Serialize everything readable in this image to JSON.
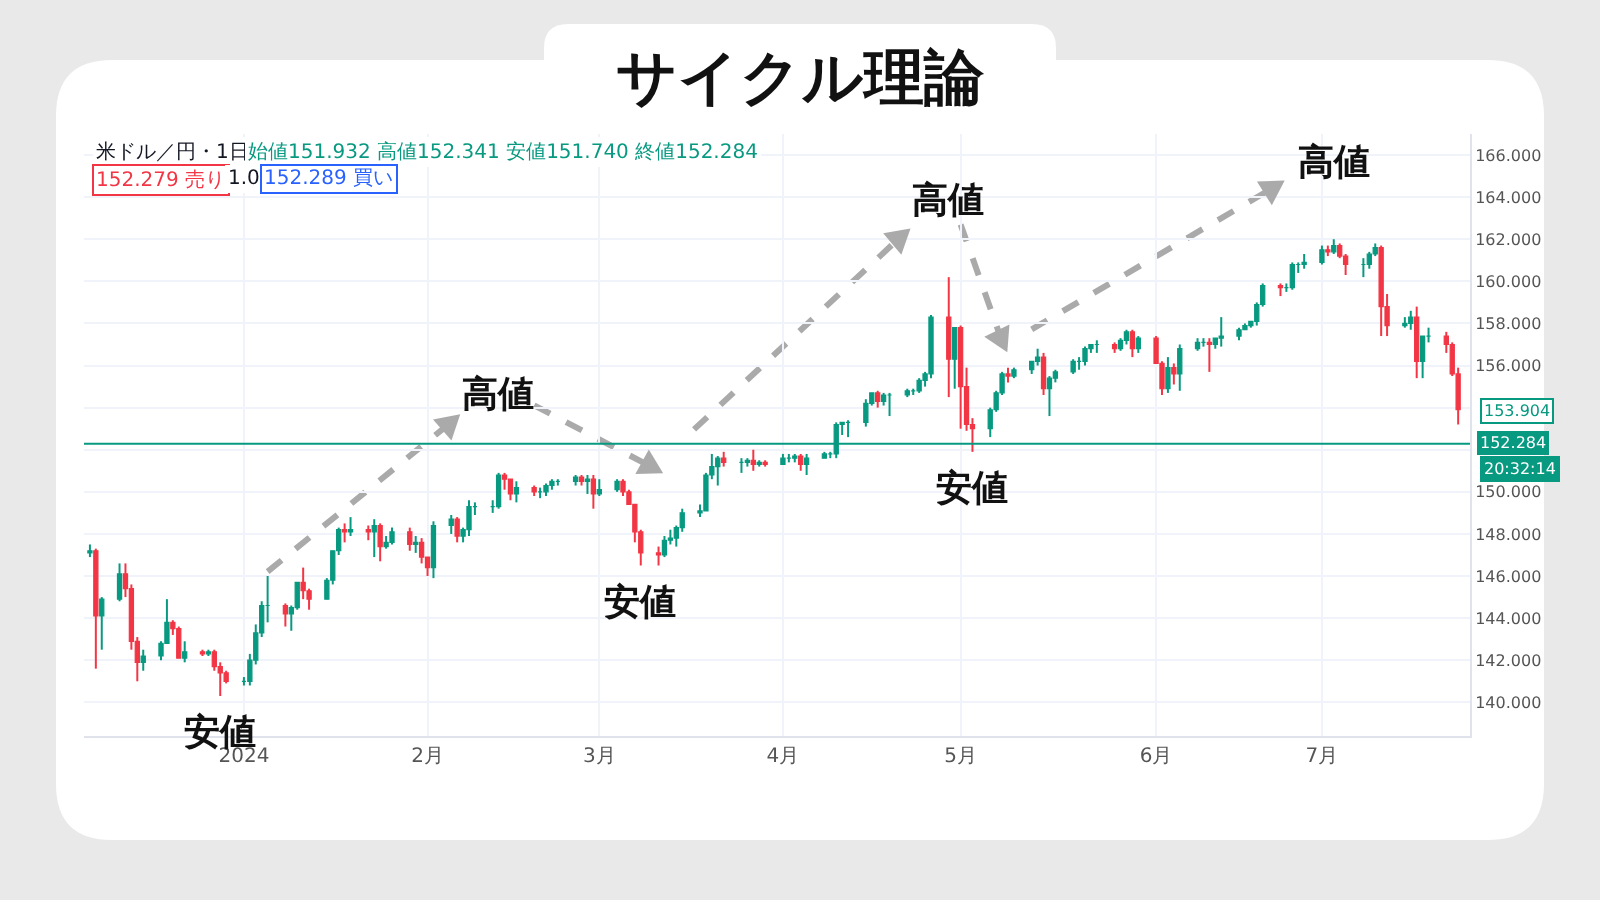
{
  "chart_data": {
    "type": "candlestick",
    "title": "サイクル理論",
    "x": [
      "2023-12-06",
      "2023-12-07",
      "2023-12-08",
      "2023-12-11",
      "2023-12-12",
      "2023-12-13",
      "2023-12-14",
      "2023-12-15",
      "2023-12-18",
      "2023-12-19",
      "2023-12-20",
      "2023-12-21",
      "2023-12-22",
      "2023-12-25",
      "2023-12-26",
      "2023-12-27",
      "2023-12-28",
      "2023-12-29",
      "2024-01-01",
      "2024-01-02",
      "2024-01-03",
      "2024-01-04",
      "2024-01-05",
      "2024-01-08",
      "2024-01-09",
      "2024-01-10",
      "2024-01-11",
      "2024-01-12",
      "2024-01-15",
      "2024-01-16",
      "2024-01-17",
      "2024-01-18",
      "2024-01-19",
      "2024-01-22",
      "2024-01-23",
      "2024-01-24",
      "2024-01-25",
      "2024-01-26",
      "2024-01-29",
      "2024-01-30",
      "2024-01-31",
      "2024-02-01",
      "2024-02-02",
      "2024-02-05",
      "2024-02-06",
      "2024-02-07",
      "2024-02-08",
      "2024-02-09",
      "2024-02-12",
      "2024-02-13",
      "2024-02-14",
      "2024-02-15",
      "2024-02-16",
      "2024-02-19",
      "2024-02-20",
      "2024-02-21",
      "2024-02-22",
      "2024-02-23",
      "2024-02-26",
      "2024-02-27",
      "2024-02-28",
      "2024-02-29",
      "2024-03-01",
      "2024-03-04",
      "2024-03-05",
      "2024-03-06",
      "2024-03-07",
      "2024-03-08",
      "2024-03-11",
      "2024-03-12",
      "2024-03-13",
      "2024-03-14",
      "2024-03-15",
      "2024-03-18",
      "2024-03-19",
      "2024-03-20",
      "2024-03-21",
      "2024-03-22",
      "2024-03-25",
      "2024-03-26",
      "2024-03-27",
      "2024-03-28",
      "2024-03-29",
      "2024-04-01",
      "2024-04-02",
      "2024-04-03",
      "2024-04-04",
      "2024-04-05",
      "2024-04-08",
      "2024-04-09",
      "2024-04-10",
      "2024-04-11",
      "2024-04-12",
      "2024-04-15",
      "2024-04-16",
      "2024-04-17",
      "2024-04-18",
      "2024-04-19",
      "2024-04-22",
      "2024-04-23",
      "2024-04-24",
      "2024-04-25",
      "2024-04-26",
      "2024-04-29",
      "2024-04-30",
      "2024-05-01",
      "2024-05-02",
      "2024-05-03",
      "2024-05-06",
      "2024-05-07",
      "2024-05-08",
      "2024-05-09",
      "2024-05-10",
      "2024-05-13",
      "2024-05-14",
      "2024-05-15",
      "2024-05-16",
      "2024-05-17",
      "2024-05-20",
      "2024-05-21",
      "2024-05-22",
      "2024-05-23",
      "2024-05-24",
      "2024-05-27",
      "2024-05-28",
      "2024-05-29",
      "2024-05-30",
      "2024-05-31",
      "2024-06-03",
      "2024-06-04",
      "2024-06-05",
      "2024-06-06",
      "2024-06-07",
      "2024-06-10",
      "2024-06-11",
      "2024-06-12",
      "2024-06-13",
      "2024-06-14",
      "2024-06-17",
      "2024-06-18",
      "2024-06-19",
      "2024-06-20",
      "2024-06-21",
      "2024-06-24",
      "2024-06-25",
      "2024-06-26",
      "2024-06-27",
      "2024-06-28",
      "2024-07-01",
      "2024-07-02",
      "2024-07-03",
      "2024-07-04",
      "2024-07-05",
      "2024-07-08",
      "2024-07-09",
      "2024-07-10",
      "2024-07-11",
      "2024-07-12",
      "2024-07-15",
      "2024-07-16",
      "2024-07-17",
      "2024-07-18",
      "2024-07-19",
      "2024-07-22",
      "2024-07-23",
      "2024-07-24"
    ],
    "ohlc": [
      [
        147.1,
        147.5,
        146.9,
        147.2
      ],
      [
        147.2,
        147.3,
        141.6,
        144.1
      ],
      [
        144.1,
        145.0,
        142.5,
        144.9
      ],
      [
        144.9,
        146.6,
        144.8,
        146.1
      ],
      [
        146.1,
        146.6,
        145.0,
        145.4
      ],
      [
        145.4,
        145.6,
        142.5,
        142.9
      ],
      [
        142.9,
        143.1,
        141.0,
        141.9
      ],
      [
        141.9,
        142.5,
        141.5,
        142.2
      ],
      [
        142.2,
        142.9,
        142.0,
        142.8
      ],
      [
        142.8,
        144.9,
        142.8,
        143.8
      ],
      [
        143.8,
        143.9,
        143.2,
        143.5
      ],
      [
        143.5,
        143.6,
        142.1,
        142.1
      ],
      [
        142.1,
        142.9,
        141.9,
        142.4
      ],
      [
        142.4,
        142.5,
        142.2,
        142.3
      ],
      [
        142.3,
        142.5,
        142.2,
        142.4
      ],
      [
        142.4,
        142.5,
        141.5,
        141.7
      ],
      [
        141.7,
        141.9,
        140.3,
        141.4
      ],
      [
        141.4,
        141.5,
        140.9,
        141.0
      ],
      [
        141.0,
        141.2,
        140.8,
        141.0
      ],
      [
        141.0,
        142.3,
        140.8,
        142.0
      ],
      [
        142.0,
        143.7,
        141.8,
        143.3
      ],
      [
        143.3,
        144.8,
        143.1,
        144.6
      ],
      [
        144.6,
        146.0,
        143.8,
        144.6
      ],
      [
        144.6,
        144.7,
        143.6,
        144.2
      ],
      [
        144.2,
        144.6,
        143.4,
        144.5
      ],
      [
        144.5,
        145.7,
        144.4,
        145.7
      ],
      [
        145.7,
        146.4,
        144.9,
        145.3
      ],
      [
        145.3,
        145.4,
        144.4,
        144.9
      ],
      [
        144.9,
        145.9,
        144.9,
        145.8
      ],
      [
        145.8,
        147.2,
        145.6,
        147.2
      ],
      [
        147.2,
        148.3,
        147.0,
        148.2
      ],
      [
        148.2,
        148.5,
        147.6,
        148.1
      ],
      [
        148.1,
        148.8,
        147.9,
        148.2
      ],
      [
        148.2,
        148.4,
        147.7,
        148.1
      ],
      [
        148.1,
        148.7,
        146.9,
        148.4
      ],
      [
        148.4,
        148.5,
        146.7,
        147.4
      ],
      [
        147.4,
        147.9,
        147.3,
        147.6
      ],
      [
        147.6,
        148.3,
        147.5,
        148.1
      ],
      [
        148.1,
        148.3,
        147.2,
        147.5
      ],
      [
        147.5,
        147.9,
        147.1,
        147.6
      ],
      [
        147.6,
        147.8,
        146.6,
        146.9
      ],
      [
        146.9,
        146.9,
        146.0,
        146.4
      ],
      [
        146.4,
        148.6,
        145.9,
        148.4
      ],
      [
        148.4,
        148.9,
        148.0,
        148.7
      ],
      [
        148.7,
        148.8,
        147.6,
        147.9
      ],
      [
        147.9,
        148.3,
        147.6,
        148.2
      ],
      [
        148.2,
        149.6,
        147.9,
        149.3
      ],
      [
        149.3,
        149.5,
        148.9,
        149.3
      ],
      [
        149.3,
        149.6,
        149.0,
        149.3
      ],
      [
        149.3,
        150.9,
        149.2,
        150.8
      ],
      [
        150.8,
        150.9,
        150.1,
        150.6
      ],
      [
        150.6,
        150.6,
        149.6,
        149.9
      ],
      [
        149.9,
        150.5,
        149.5,
        150.2
      ],
      [
        150.2,
        150.3,
        149.8,
        150.0
      ],
      [
        150.0,
        150.2,
        149.7,
        150.0
      ],
      [
        150.0,
        150.4,
        149.8,
        150.3
      ],
      [
        150.3,
        150.6,
        150.1,
        150.5
      ],
      [
        150.5,
        150.6,
        150.3,
        150.5
      ],
      [
        150.5,
        150.8,
        150.3,
        150.7
      ],
      [
        150.7,
        150.8,
        150.3,
        150.5
      ],
      [
        150.5,
        150.8,
        149.9,
        150.6
      ],
      [
        150.6,
        150.8,
        149.2,
        149.9
      ],
      [
        149.9,
        150.6,
        149.8,
        150.1
      ],
      [
        150.1,
        150.6,
        150.0,
        150.5
      ],
      [
        150.5,
        150.6,
        149.8,
        150.0
      ],
      [
        150.0,
        150.1,
        149.4,
        149.4
      ],
      [
        149.4,
        149.4,
        147.6,
        148.1
      ],
      [
        148.1,
        148.2,
        146.5,
        147.1
      ],
      [
        147.1,
        147.4,
        146.5,
        147.0
      ],
      [
        147.0,
        147.9,
        146.9,
        147.7
      ],
      [
        147.7,
        148.2,
        147.5,
        147.8
      ],
      [
        147.8,
        148.4,
        147.4,
        148.3
      ],
      [
        148.3,
        149.2,
        148.1,
        149.0
      ],
      [
        149.0,
        149.4,
        148.8,
        149.1
      ],
      [
        149.1,
        150.9,
        149.1,
        150.8
      ],
      [
        150.8,
        151.8,
        150.6,
        151.2
      ],
      [
        151.2,
        151.7,
        150.3,
        151.6
      ],
      [
        151.6,
        151.9,
        151.2,
        151.4
      ],
      [
        151.4,
        151.6,
        150.9,
        151.4
      ],
      [
        151.4,
        151.6,
        151.2,
        151.5
      ],
      [
        151.5,
        152.0,
        151.0,
        151.3
      ],
      [
        151.3,
        151.5,
        151.2,
        151.4
      ],
      [
        151.4,
        151.5,
        151.2,
        151.3
      ],
      [
        151.3,
        151.8,
        151.3,
        151.6
      ],
      [
        151.6,
        151.8,
        151.4,
        151.6
      ],
      [
        151.6,
        151.8,
        151.4,
        151.7
      ],
      [
        151.7,
        151.8,
        151.0,
        151.3
      ],
      [
        151.3,
        151.8,
        150.8,
        151.6
      ],
      [
        151.6,
        151.9,
        151.6,
        151.8
      ],
      [
        151.8,
        151.9,
        151.6,
        151.8
      ],
      [
        151.8,
        153.3,
        151.6,
        153.2
      ],
      [
        153.2,
        153.3,
        152.7,
        153.3
      ],
      [
        153.3,
        153.4,
        152.6,
        153.3
      ],
      [
        153.3,
        154.4,
        153.1,
        154.2
      ],
      [
        154.2,
        154.7,
        154.1,
        154.7
      ],
      [
        154.7,
        154.8,
        154.0,
        154.3
      ],
      [
        154.3,
        154.7,
        154.1,
        154.6
      ],
      [
        154.6,
        154.7,
        153.6,
        154.6
      ],
      [
        154.6,
        154.9,
        154.5,
        154.8
      ],
      [
        154.8,
        154.9,
        154.6,
        154.8
      ],
      [
        154.8,
        155.4,
        154.7,
        155.3
      ],
      [
        155.3,
        155.7,
        155.0,
        155.6
      ],
      [
        155.6,
        158.4,
        155.4,
        158.3
      ],
      [
        158.3,
        160.2,
        154.5,
        156.3
      ],
      [
        156.3,
        157.8,
        154.9,
        157.8
      ],
      [
        157.8,
        157.9,
        153.0,
        155.0
      ],
      [
        155.0,
        155.9,
        152.9,
        153.2
      ],
      [
        153.2,
        153.5,
        151.9,
        153.0
      ],
      [
        153.0,
        154.0,
        152.6,
        153.9
      ],
      [
        153.9,
        154.8,
        153.8,
        154.7
      ],
      [
        154.7,
        155.7,
        154.6,
        155.6
      ],
      [
        155.6,
        155.9,
        155.2,
        155.5
      ],
      [
        155.5,
        155.9,
        155.4,
        155.8
      ],
      [
        155.8,
        156.2,
        155.6,
        156.2
      ],
      [
        156.2,
        156.8,
        156.0,
        156.4
      ],
      [
        156.4,
        156.6,
        154.6,
        154.9
      ],
      [
        154.9,
        155.5,
        153.6,
        155.4
      ],
      [
        155.4,
        155.8,
        155.2,
        155.7
      ],
      [
        155.7,
        156.3,
        155.6,
        156.2
      ],
      [
        156.2,
        156.4,
        155.8,
        156.2
      ],
      [
        156.2,
        156.9,
        156.0,
        156.8
      ],
      [
        156.8,
        157.0,
        156.6,
        157.0
      ],
      [
        157.0,
        157.2,
        156.6,
        157.0
      ],
      [
        157.0,
        157.1,
        156.6,
        156.8
      ],
      [
        156.8,
        157.3,
        156.7,
        157.2
      ],
      [
        157.2,
        157.7,
        157.0,
        157.6
      ],
      [
        157.6,
        157.7,
        156.4,
        156.8
      ],
      [
        156.8,
        157.4,
        156.6,
        157.3
      ],
      [
        157.3,
        157.4,
        156.1,
        156.1
      ],
      [
        156.1,
        156.2,
        154.6,
        154.9
      ],
      [
        154.9,
        156.4,
        154.7,
        155.9
      ],
      [
        155.9,
        156.1,
        155.1,
        155.6
      ],
      [
        155.6,
        157.0,
        154.8,
        156.8
      ],
      [
        156.8,
        157.3,
        156.7,
        157.1
      ],
      [
        157.1,
        157.3,
        156.9,
        157.1
      ],
      [
        157.1,
        157.3,
        155.7,
        157.0
      ],
      [
        157.0,
        157.3,
        156.8,
        157.3
      ],
      [
        157.3,
        158.3,
        156.9,
        157.4
      ],
      [
        157.4,
        157.8,
        157.2,
        157.7
      ],
      [
        157.7,
        158.0,
        157.7,
        157.9
      ],
      [
        157.9,
        158.1,
        157.8,
        158.1
      ],
      [
        158.1,
        159.0,
        157.9,
        158.9
      ],
      [
        158.9,
        159.9,
        158.8,
        159.8
      ],
      [
        159.8,
        159.9,
        159.3,
        159.7
      ],
      [
        159.7,
        159.9,
        159.5,
        159.7
      ],
      [
        159.7,
        160.9,
        159.6,
        160.8
      ],
      [
        160.8,
        160.9,
        160.4,
        160.8
      ],
      [
        160.8,
        161.3,
        160.6,
        160.9
      ],
      [
        160.9,
        161.7,
        160.8,
        161.5
      ],
      [
        161.5,
        161.7,
        161.2,
        161.4
      ],
      [
        161.4,
        162.0,
        161.3,
        161.7
      ],
      [
        161.7,
        161.8,
        161.1,
        161.2
      ],
      [
        161.2,
        161.3,
        160.3,
        160.8
      ],
      [
        160.8,
        161.1,
        160.2,
        160.8
      ],
      [
        160.8,
        161.4,
        160.6,
        161.3
      ],
      [
        161.3,
        161.8,
        161.2,
        161.6
      ],
      [
        161.6,
        161.7,
        157.4,
        158.8
      ],
      [
        158.8,
        159.4,
        157.4,
        157.9
      ],
      [
        157.9,
        158.3,
        157.8,
        158.0
      ],
      [
        158.0,
        158.6,
        157.7,
        158.3
      ],
      [
        158.3,
        158.8,
        155.4,
        156.2
      ],
      [
        156.2,
        157.4,
        155.4,
        157.4
      ],
      [
        157.4,
        157.8,
        157.1,
        157.4
      ],
      [
        157.4,
        157.6,
        156.6,
        157.0
      ],
      [
        157.0,
        157.1,
        155.5,
        155.6
      ],
      [
        155.6,
        155.9,
        153.2,
        153.9
      ]
    ],
    "xlim": [
      "2023-12-05",
      "2024-07-26"
    ],
    "xticks": [
      {
        "value": "2024-01-01",
        "label": "2024"
      },
      {
        "value": "2024-02-01",
        "label": "2月"
      },
      {
        "value": "2024-03-01",
        "label": "3月"
      },
      {
        "value": "2024-04-01",
        "label": "4月"
      },
      {
        "value": "2024-05-01",
        "label": "5月"
      },
      {
        "value": "2024-06-03",
        "label": "6月"
      },
      {
        "value": "2024-07-01",
        "label": "7月"
      }
    ],
    "ylim": [
      138.4,
      167.0
    ],
    "yticks": [
      {
        "value": 140,
        "label": "140.000"
      },
      {
        "value": 142,
        "label": "142.000"
      },
      {
        "value": 144,
        "label": "144.000"
      },
      {
        "value": 146,
        "label": "146.000"
      },
      {
        "value": 148,
        "label": "148.000"
      },
      {
        "value": 150,
        "label": "150.000"
      },
      {
        "value": 152,
        "label": null
      },
      {
        "value": 154,
        "label": null
      },
      {
        "value": 156,
        "label": "156.000"
      },
      {
        "value": 158,
        "label": "158.000"
      },
      {
        "value": 160,
        "label": "160.000"
      },
      {
        "value": 162,
        "label": "162.000"
      },
      {
        "value": 164,
        "label": "164.000"
      },
      {
        "value": 166,
        "label": "166.000"
      }
    ],
    "grid": true,
    "legend": false,
    "ref_lines": [
      {
        "axis": "y",
        "value": 152.284,
        "label": "152.284",
        "color": "#089981"
      }
    ],
    "annotations": [
      "米ドル／円・1日",
      "始値151.932 高値152.341 安値151.740 終値152.284",
      "152.279 売り",
      "1.0",
      "152.289 買い",
      "153.904",
      "20:32:14",
      {
        "text": "安値",
        "x": "2023-12-28",
        "y": 140.3
      },
      {
        "text": "高値",
        "x": "2024-02-13",
        "y": 150.9
      },
      {
        "text": "安値",
        "x": "2024-03-08",
        "y": 146.5
      },
      {
        "text": "高値",
        "x": "2024-04-29",
        "y": 160.2
      },
      {
        "text": "安値",
        "x": "2024-05-03",
        "y": 151.9
      },
      {
        "text": "高値",
        "x": "2024-07-03",
        "y": 162.0
      }
    ]
  }
}
